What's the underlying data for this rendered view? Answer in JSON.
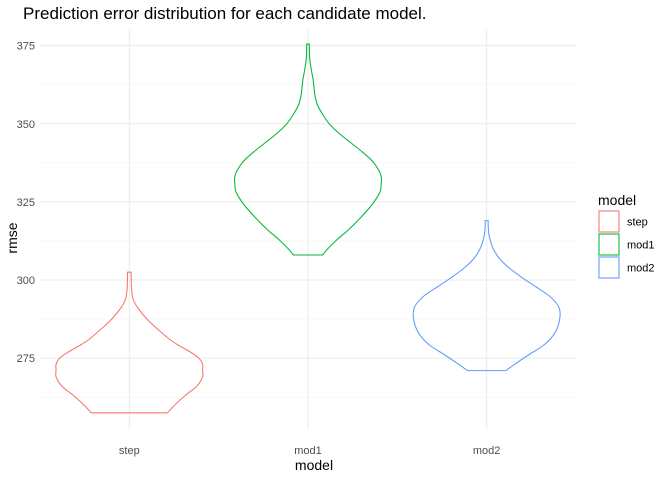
{
  "chart_data": {
    "type": "violin",
    "title": "Prediction error distribution for each candidate model.",
    "xlabel": "model",
    "ylabel": "rmse",
    "categories": [
      "step",
      "mod1",
      "mod2"
    ],
    "ylim": [
      252,
      380
    ],
    "yticks": [
      275,
      300,
      325,
      350,
      375
    ],
    "grid": true,
    "legend": {
      "title": "model",
      "position": "right",
      "entries": [
        "step",
        "mod1",
        "mod2"
      ]
    },
    "series": [
      {
        "name": "step",
        "color": "#F8766D",
        "min": 257.5,
        "max": 302.5,
        "density": [
          [
            257.5,
            0.52
          ],
          [
            260,
            0.62
          ],
          [
            263,
            0.76
          ],
          [
            266,
            0.92
          ],
          [
            269,
            1.0
          ],
          [
            271,
            1.0
          ],
          [
            273,
            1.0
          ],
          [
            275,
            0.95
          ],
          [
            277,
            0.83
          ],
          [
            279,
            0.68
          ],
          [
            281,
            0.55
          ],
          [
            284,
            0.4
          ],
          [
            287,
            0.26
          ],
          [
            290,
            0.15
          ],
          [
            292,
            0.09
          ],
          [
            294,
            0.05
          ],
          [
            296,
            0.035
          ],
          [
            298,
            0.028
          ],
          [
            300,
            0.026
          ],
          [
            302.5,
            0.024
          ]
        ]
      },
      {
        "name": "mod1",
        "color": "#00BA38",
        "min": 308,
        "max": 375.5,
        "density": [
          [
            308,
            0.2
          ],
          [
            310,
            0.27
          ],
          [
            313,
            0.4
          ],
          [
            316,
            0.55
          ],
          [
            320,
            0.72
          ],
          [
            324,
            0.87
          ],
          [
            328,
            0.98
          ],
          [
            331,
            1.0
          ],
          [
            333,
            1.0
          ],
          [
            335,
            0.97
          ],
          [
            338,
            0.88
          ],
          [
            341,
            0.74
          ],
          [
            344,
            0.58
          ],
          [
            347,
            0.42
          ],
          [
            350,
            0.29
          ],
          [
            353,
            0.2
          ],
          [
            356,
            0.13
          ],
          [
            359,
            0.095
          ],
          [
            362,
            0.08
          ],
          [
            364,
            0.07
          ],
          [
            366,
            0.055
          ],
          [
            368,
            0.04
          ],
          [
            370,
            0.028
          ],
          [
            372,
            0.02
          ],
          [
            375.5,
            0.018
          ]
        ]
      },
      {
        "name": "mod2",
        "color": "#619CFF",
        "min": 271,
        "max": 319,
        "density": [
          [
            271,
            0.26
          ],
          [
            273,
            0.38
          ],
          [
            276,
            0.57
          ],
          [
            279,
            0.77
          ],
          [
            282,
            0.9
          ],
          [
            285,
            0.97
          ],
          [
            288,
            1.0
          ],
          [
            290,
            1.0
          ],
          [
            292,
            0.97
          ],
          [
            295,
            0.85
          ],
          [
            298,
            0.66
          ],
          [
            301,
            0.47
          ],
          [
            304,
            0.3
          ],
          [
            307,
            0.17
          ],
          [
            310,
            0.09
          ],
          [
            313,
            0.045
          ],
          [
            315,
            0.028
          ],
          [
            317,
            0.022
          ],
          [
            319,
            0.02
          ]
        ]
      }
    ]
  }
}
